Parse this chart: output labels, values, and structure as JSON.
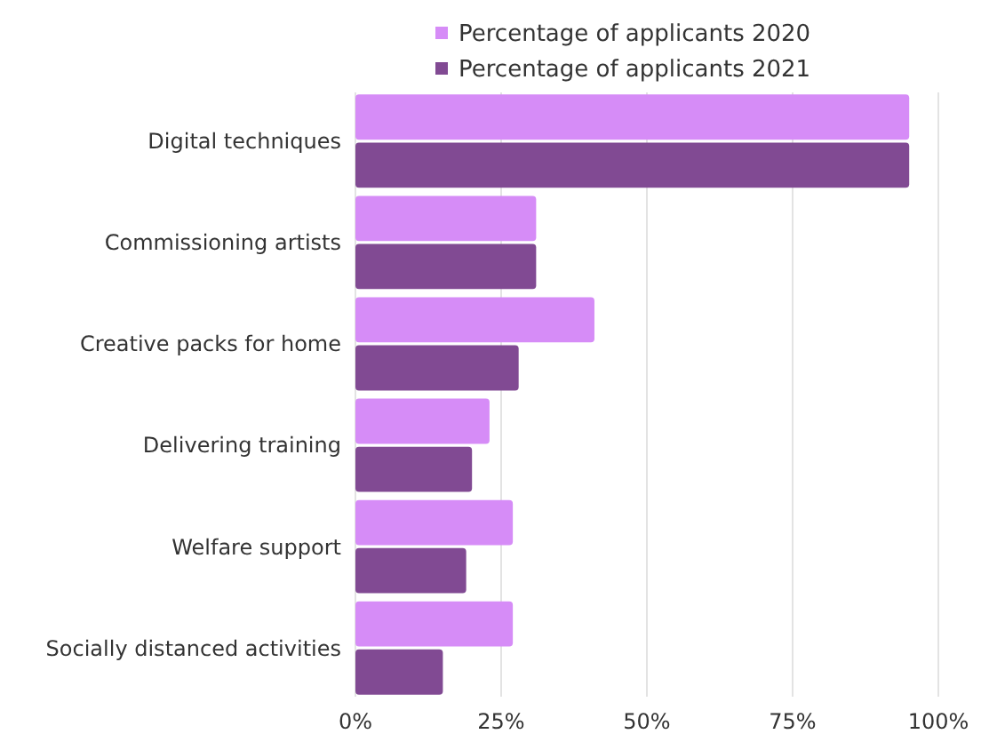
{
  "chart_data": {
    "type": "bar",
    "orientation": "horizontal",
    "categories": [
      "Digital techniques",
      "Commissioning artists",
      "Creative packs for home",
      "Delivering training",
      "Welfare support",
      "Socially distanced activities"
    ],
    "series": [
      {
        "name": "Percentage of applicants 2020",
        "color": "#d68cf7",
        "values": [
          95,
          31,
          41,
          23,
          27,
          27
        ]
      },
      {
        "name": "Percentage of applicants 2021",
        "color": "#814a93",
        "values": [
          95,
          31,
          28,
          20,
          19,
          15
        ]
      }
    ],
    "xlim": [
      0,
      100
    ],
    "xticks": [
      {
        "value": 0,
        "label": "0%"
      },
      {
        "value": 25,
        "label": "25%"
      },
      {
        "value": 50,
        "label": "50%"
      },
      {
        "value": 75,
        "label": "75%"
      },
      {
        "value": 100,
        "label": "100%"
      }
    ],
    "grid": "x",
    "legend": "top"
  }
}
